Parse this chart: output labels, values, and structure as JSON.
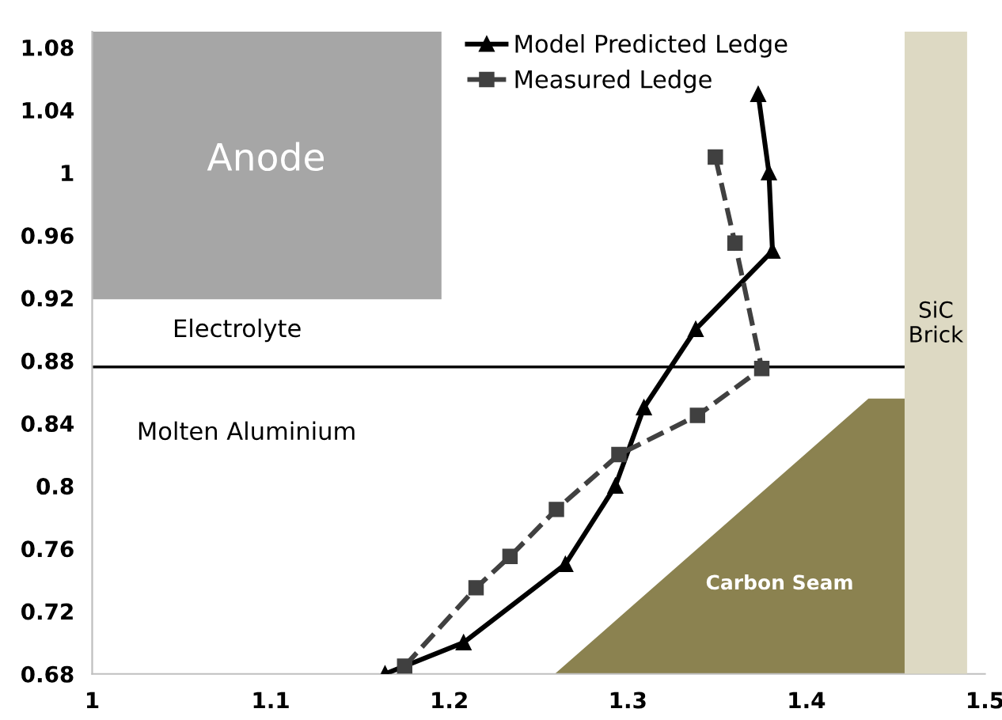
{
  "chart_data": {
    "type": "line",
    "xlim": [
      1,
      1.5
    ],
    "ylim": [
      0.68,
      1.09
    ],
    "xticks": [
      1,
      1.1,
      1.2,
      1.3,
      1.4,
      1.5
    ],
    "yticks": [
      0.68,
      0.72,
      0.76,
      0.8,
      0.84,
      0.88,
      0.92,
      0.96,
      1,
      1.04,
      1.08
    ],
    "series": [
      {
        "name": "Model Predicted Ledge",
        "color": "#000000",
        "marker": "triangle",
        "line_style": "solid",
        "x": [
          1.164,
          1.208,
          1.265,
          1.293,
          1.309,
          1.338,
          1.381,
          1.379,
          1.373
        ],
        "values": [
          0.68,
          0.7,
          0.75,
          0.8,
          0.85,
          0.9,
          0.95,
          1.0,
          1.05
        ]
      },
      {
        "name": "Measured Ledge",
        "color": "#404040",
        "marker": "square",
        "line_style": "dashed",
        "x": [
          1.175,
          1.215,
          1.234,
          1.26,
          1.295,
          1.339,
          1.375,
          1.36,
          1.349
        ],
        "values": [
          0.685,
          0.735,
          0.755,
          0.785,
          0.82,
          0.845,
          0.875,
          0.955,
          1.01
        ]
      }
    ],
    "ref_lines": [
      {
        "axis": "y",
        "value": 0.876,
        "color": "#000000"
      }
    ],
    "bands": [
      {
        "axis": "x",
        "from": 1.455,
        "to": 1.49,
        "label": "SiC\nBrick",
        "color": "#ddd9c3"
      }
    ],
    "annotations": [
      "Anode",
      "Electrolyte",
      "Molten Aluminium",
      "Carbon Seam"
    ],
    "legend": "top",
    "grid": false
  }
}
